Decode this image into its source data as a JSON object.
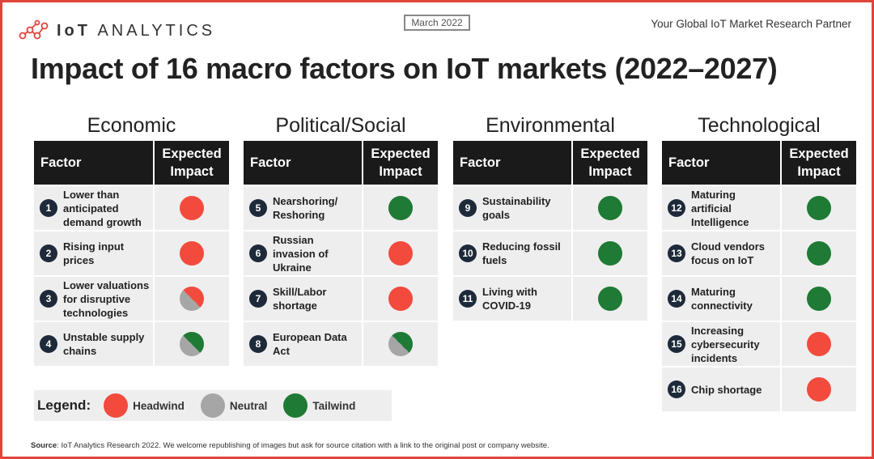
{
  "header": {
    "logo_text_bold": "IoT",
    "logo_text": "ANALYTICS",
    "date": "March 2022",
    "tagline": "Your Global IoT Market Research Partner",
    "title": "Impact of 16 macro factors on IoT markets (2022–2027)"
  },
  "table_headers": {
    "factor": "Factor",
    "impact_line1": "Expected",
    "impact_line2": "Impact"
  },
  "colors": {
    "headwind": "#f24a3d",
    "neutral": "#a6a6a6",
    "tailwind": "#1e7a34",
    "dark": "#1a1a1a"
  },
  "columns": [
    {
      "title": "Economic",
      "rows": [
        {
          "num": "1",
          "label": "Lower than anticipated demand growth",
          "impact": "headwind"
        },
        {
          "num": "2",
          "label": "Rising input prices",
          "impact": "headwind"
        },
        {
          "num": "3",
          "label": "Lower valuations for disruptive technologies",
          "impact": "neutral-headwind"
        },
        {
          "num": "4",
          "label": "Unstable supply chains",
          "impact": "neutral-tailwind"
        }
      ]
    },
    {
      "title": "Political/Social",
      "rows": [
        {
          "num": "5",
          "label": "Nearshoring/ Reshoring",
          "impact": "tailwind"
        },
        {
          "num": "6",
          "label": "Russian invasion of Ukraine",
          "impact": "headwind"
        },
        {
          "num": "7",
          "label": "Skill/Labor shortage",
          "impact": "headwind"
        },
        {
          "num": "8",
          "label": "European Data Act",
          "impact": "neutral-tailwind"
        }
      ]
    },
    {
      "title": "Environmental",
      "rows": [
        {
          "num": "9",
          "label": "Sustainability goals",
          "impact": "tailwind"
        },
        {
          "num": "10",
          "label": "Reducing fossil fuels",
          "impact": "tailwind"
        },
        {
          "num": "11",
          "label": "Living with COVID-19",
          "impact": "tailwind"
        }
      ]
    },
    {
      "title": "Technological",
      "rows": [
        {
          "num": "12",
          "label": "Maturing artificial Intelligence",
          "impact": "tailwind"
        },
        {
          "num": "13",
          "label": "Cloud vendors focus on IoT",
          "impact": "tailwind"
        },
        {
          "num": "14",
          "label": "Maturing connectivity",
          "impact": "tailwind"
        },
        {
          "num": "15",
          "label": "Increasing cybersecurity incidents",
          "impact": "headwind"
        },
        {
          "num": "16",
          "label": "Chip shortage",
          "impact": "headwind"
        }
      ]
    }
  ],
  "legend": {
    "title": "Legend:",
    "headwind": "Headwind",
    "neutral": "Neutral",
    "tailwind": "Tailwind"
  },
  "source": {
    "label": "Source",
    "text": ": IoT Analytics Research 2022. We welcome republishing of images but ask for source citation with a link to the original post or company website."
  }
}
